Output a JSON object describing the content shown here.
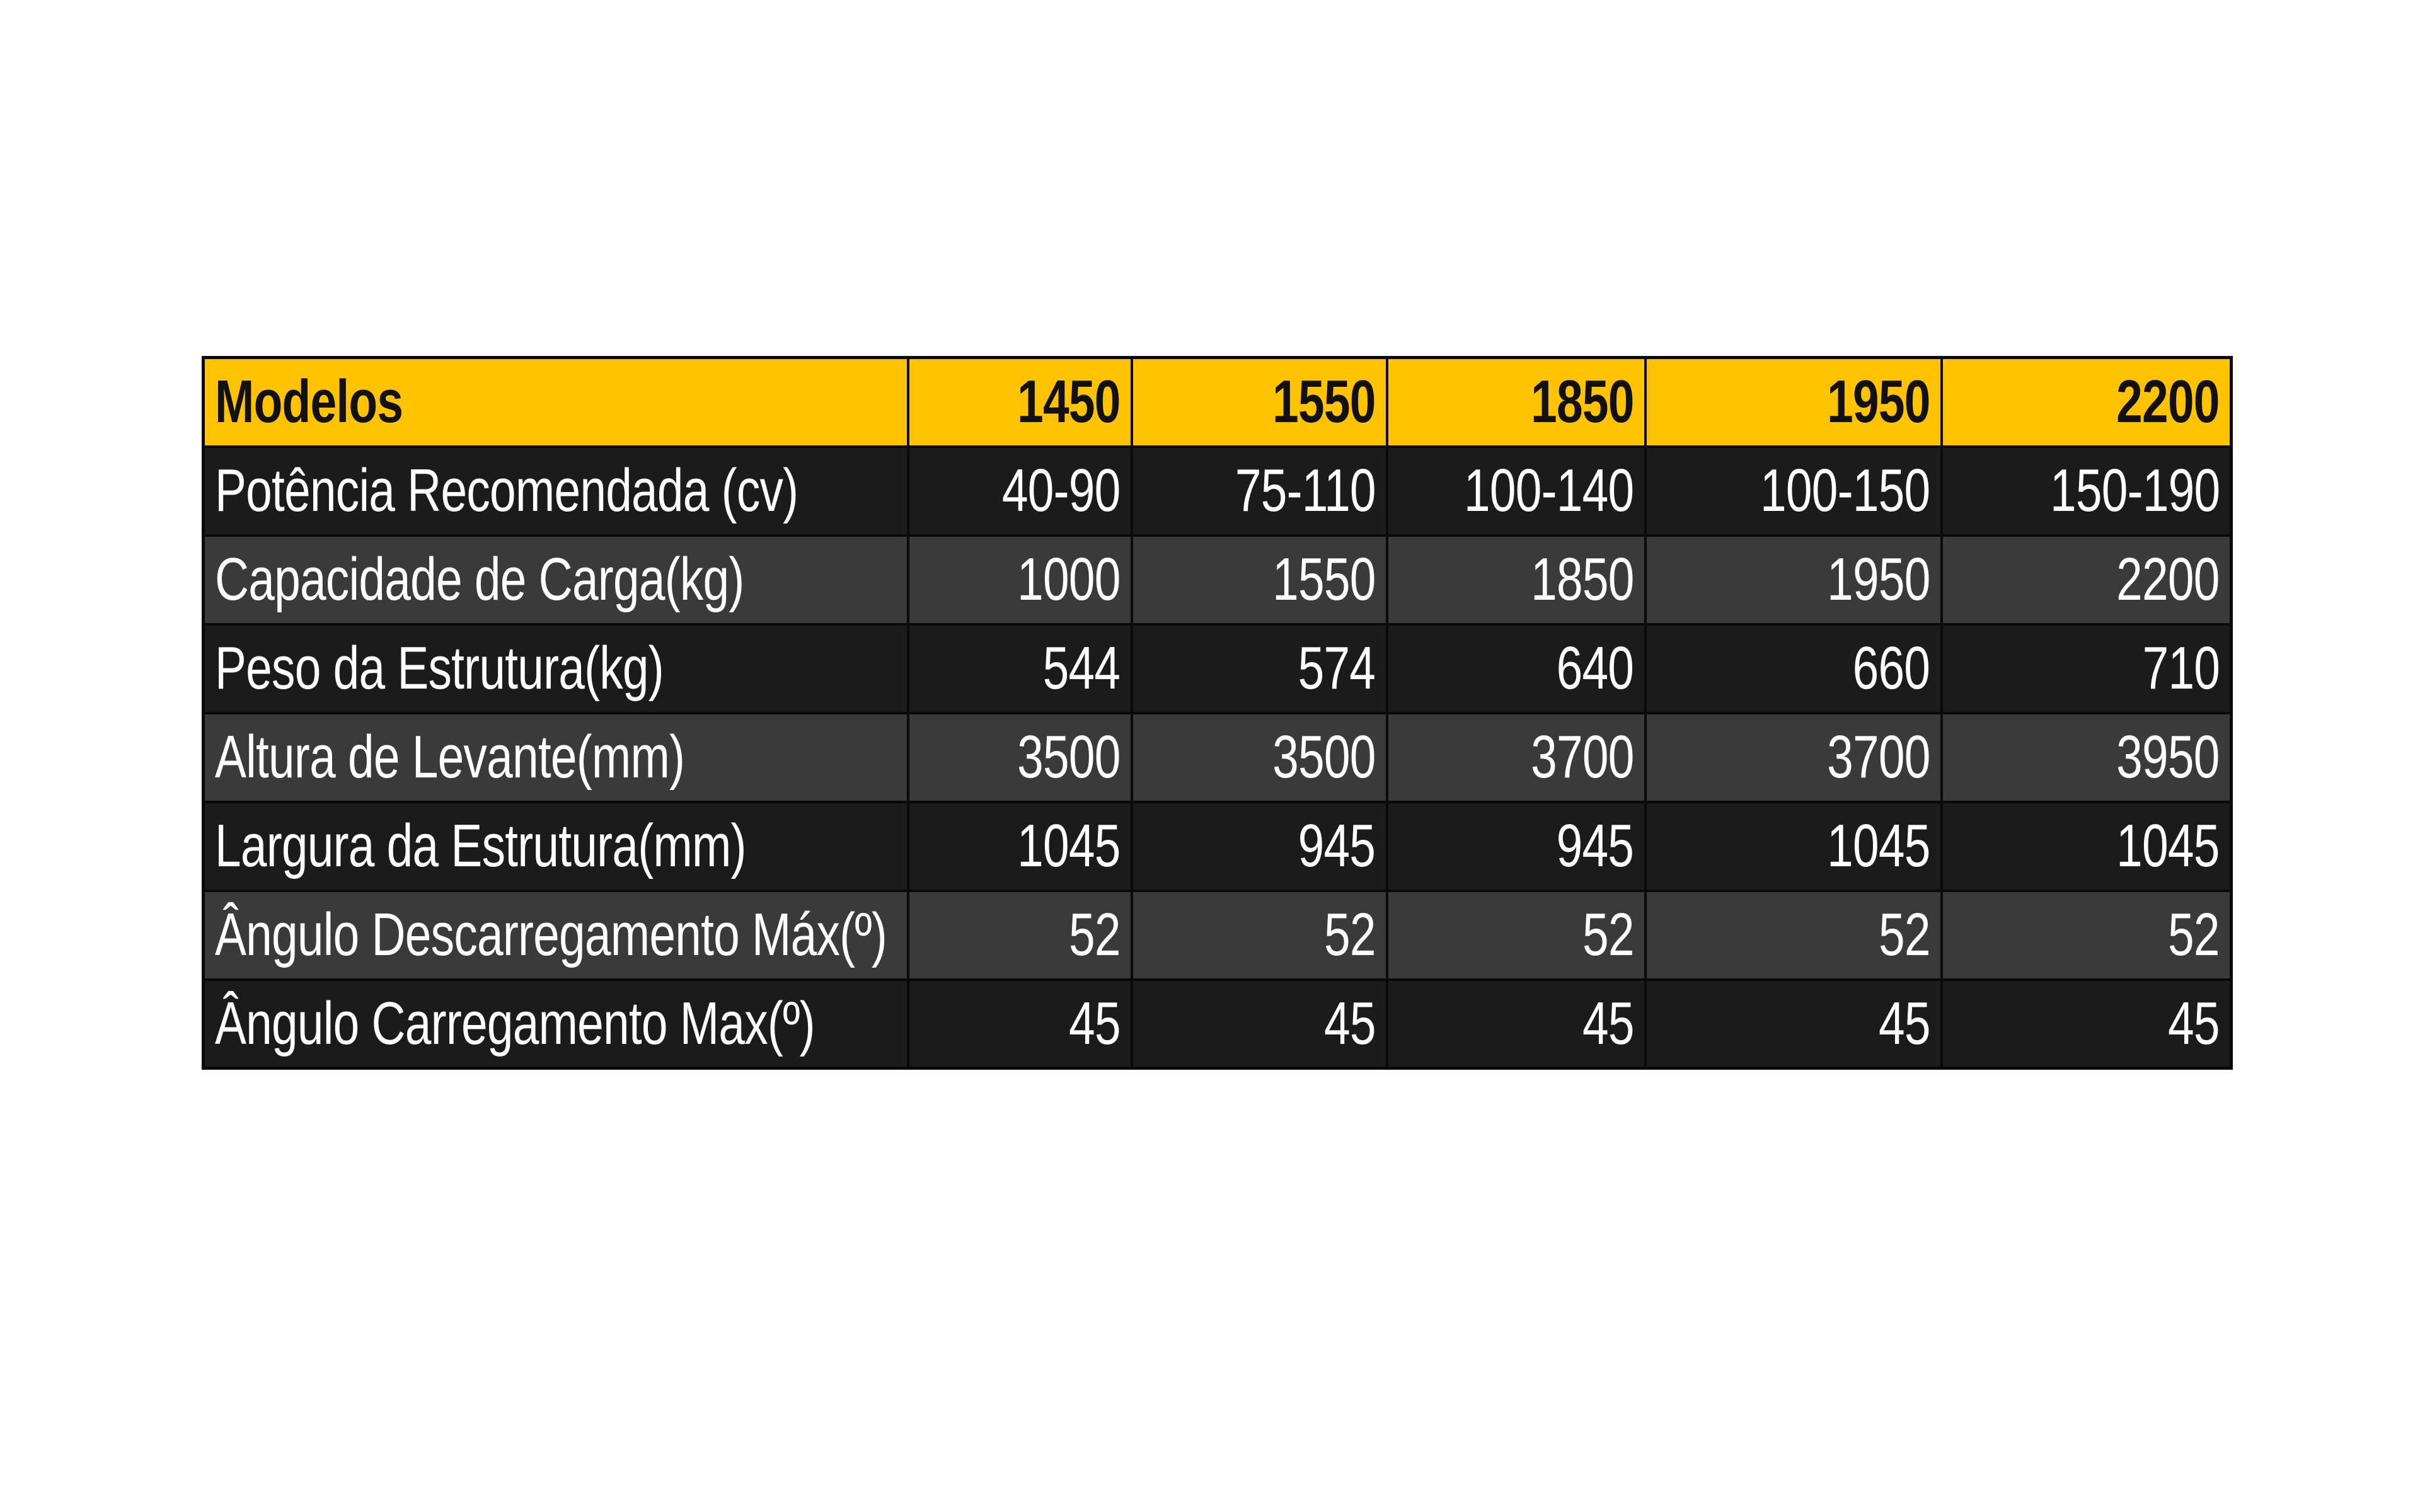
{
  "table": {
    "header": {
      "label": "Modelos",
      "models": [
        "1450",
        "1550",
        "1850",
        "1950",
        "2200"
      ]
    },
    "rows": [
      {
        "label": "Potência Recomendada (cv)",
        "values": [
          "40-90",
          "75-110",
          "100-140",
          "100-150",
          "150-190"
        ]
      },
      {
        "label": "Capacidade de Carga(kg)",
        "values": [
          "1000",
          "1550",
          "1850",
          "1950",
          "2200"
        ]
      },
      {
        "label": "Peso da Estrutura(kg)",
        "values": [
          "544",
          "574",
          "640",
          "660",
          "710"
        ]
      },
      {
        "label": "Altura de Levante(mm)",
        "values": [
          "3500",
          "3500",
          "3700",
          "3700",
          "3950"
        ]
      },
      {
        "label": "Largura da Estrutura(mm)",
        "values": [
          "1045",
          "945",
          "945",
          "1045",
          "1045"
        ]
      },
      {
        "label": "Ângulo Descarregamento Máx(º)",
        "values": [
          "52",
          "52",
          "52",
          "52",
          "52"
        ]
      },
      {
        "label": "Ângulo Carregamento Max(º)",
        "values": [
          "45",
          "45",
          "45",
          "45",
          "45"
        ]
      }
    ],
    "colors": {
      "header_bg": "#ffc300",
      "row_dark": "#1b1b1b",
      "row_light": "#3a3a3a",
      "border": "#0a0a0a"
    }
  }
}
